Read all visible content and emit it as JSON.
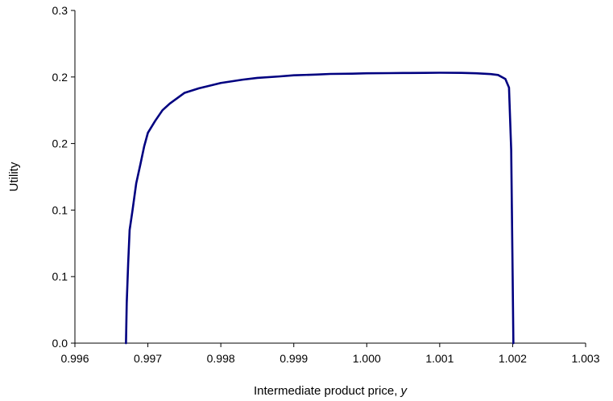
{
  "chart_data": {
    "type": "line",
    "title": "",
    "xlabel": "Intermediate product price,",
    "xlabel_var": "y",
    "ylabel": "Utility",
    "xlim": [
      0.996,
      1.003
    ],
    "ylim": [
      0.0,
      0.25
    ],
    "grid": false,
    "legend": "none",
    "x_ticks": [
      0.996,
      0.997,
      0.998,
      0.999,
      1.0,
      1.001,
      1.002,
      1.003
    ],
    "x_tick_labels": [
      "0.996",
      "0.997",
      "0.998",
      "0.999",
      "1.000",
      "1.001",
      "1.002",
      "1.003"
    ],
    "y_ticks": [
      0.0,
      0.05,
      0.1,
      0.15,
      0.2,
      0.25
    ],
    "y_tick_labels": [
      "0.0",
      "0.1",
      "0.1",
      "0.2",
      "0.2",
      "0.3"
    ],
    "line_color": "#000080",
    "series": [
      {
        "x": [
          0.9967,
          0.99671,
          0.99673,
          0.99675,
          0.99679,
          0.99684,
          0.9969,
          0.99695,
          0.997,
          0.9971,
          0.9972,
          0.9973,
          0.9974,
          0.9975,
          0.9977,
          0.998,
          0.9983,
          0.9985,
          0.9988,
          0.999,
          0.9993,
          0.9995,
          0.9998,
          1.0,
          1.0003,
          1.0005,
          1.0008,
          1.001,
          1.0013,
          1.0015,
          1.0017,
          1.0018,
          1.0019,
          1.00195,
          1.00198,
          1.002,
          1.00201
        ],
        "y": [
          0.0,
          0.03,
          0.06,
          0.085,
          0.1,
          0.12,
          0.135,
          0.148,
          0.158,
          0.167,
          0.175,
          0.18,
          0.184,
          0.188,
          0.1915,
          0.1955,
          0.198,
          0.1993,
          0.2004,
          0.2013,
          0.2018,
          0.2023,
          0.2025,
          0.2028,
          0.2029,
          0.203,
          0.2031,
          0.2032,
          0.2031,
          0.2028,
          0.2022,
          0.2015,
          0.1985,
          0.192,
          0.145,
          0.05,
          0.0
        ]
      }
    ]
  }
}
